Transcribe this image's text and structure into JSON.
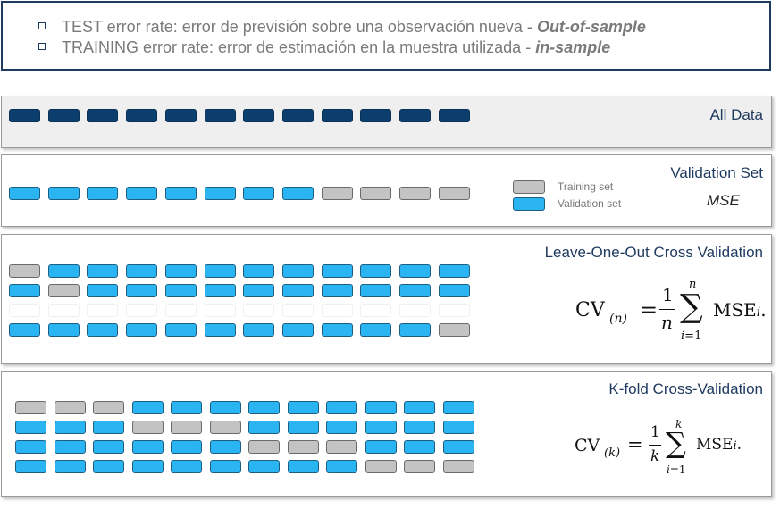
{
  "bullets": [
    {
      "text": "TEST error rate: error de previsión sobre una observación nueva - ",
      "emph": "Out-of-sample"
    },
    {
      "text": "TRAINING error rate: error de estimación en la muestra utilizada - ",
      "emph": "in-sample"
    }
  ],
  "panels": {
    "all_data": {
      "title": "All Data"
    },
    "validation_set": {
      "title": "Validation Set",
      "legend_training": "Training set",
      "legend_validation": "Validation set",
      "mse": "MSE"
    },
    "loocv": {
      "title": "Leave-One-Out Cross Validation"
    },
    "kfold": {
      "title": "K-fold Cross-Validation"
    }
  },
  "colors": {
    "data_block": "#0d3f6e",
    "validation_block": "#2ab5f2",
    "training_block": "#c3c3c3",
    "title_color": "#1f3a5f"
  },
  "grids": {
    "all_data": [
      [
        "d",
        "d",
        "d",
        "d",
        "d",
        "d",
        "d",
        "d",
        "d",
        "d",
        "d",
        "d"
      ]
    ],
    "validation_set": [
      [
        "b",
        "b",
        "b",
        "b",
        "b",
        "b",
        "b",
        "b",
        "g",
        "g",
        "g",
        "g"
      ]
    ],
    "loocv": [
      [
        "g",
        "b",
        "b",
        "b",
        "b",
        "b",
        "b",
        "b",
        "b",
        "b",
        "b",
        "b"
      ],
      [
        "b",
        "g",
        "b",
        "b",
        "b",
        "b",
        "b",
        "b",
        "b",
        "b",
        "b",
        "b"
      ],
      [
        "e",
        "e",
        "e",
        "e",
        "e",
        "e",
        "e",
        "e",
        "e",
        "e",
        "e",
        "e"
      ],
      [
        "b",
        "b",
        "b",
        "b",
        "b",
        "b",
        "b",
        "b",
        "b",
        "b",
        "b",
        "g"
      ]
    ],
    "kfold": [
      [
        "g",
        "g",
        "g",
        "b",
        "b",
        "b",
        "b",
        "b",
        "b",
        "b",
        "b",
        "b"
      ],
      [
        "b",
        "b",
        "b",
        "g",
        "g",
        "g",
        "b",
        "b",
        "b",
        "b",
        "b",
        "b"
      ],
      [
        "b",
        "b",
        "b",
        "b",
        "b",
        "b",
        "g",
        "g",
        "g",
        "b",
        "b",
        "b"
      ],
      [
        "b",
        "b",
        "b",
        "b",
        "b",
        "b",
        "b",
        "b",
        "b",
        "g",
        "g",
        "g"
      ]
    ]
  }
}
